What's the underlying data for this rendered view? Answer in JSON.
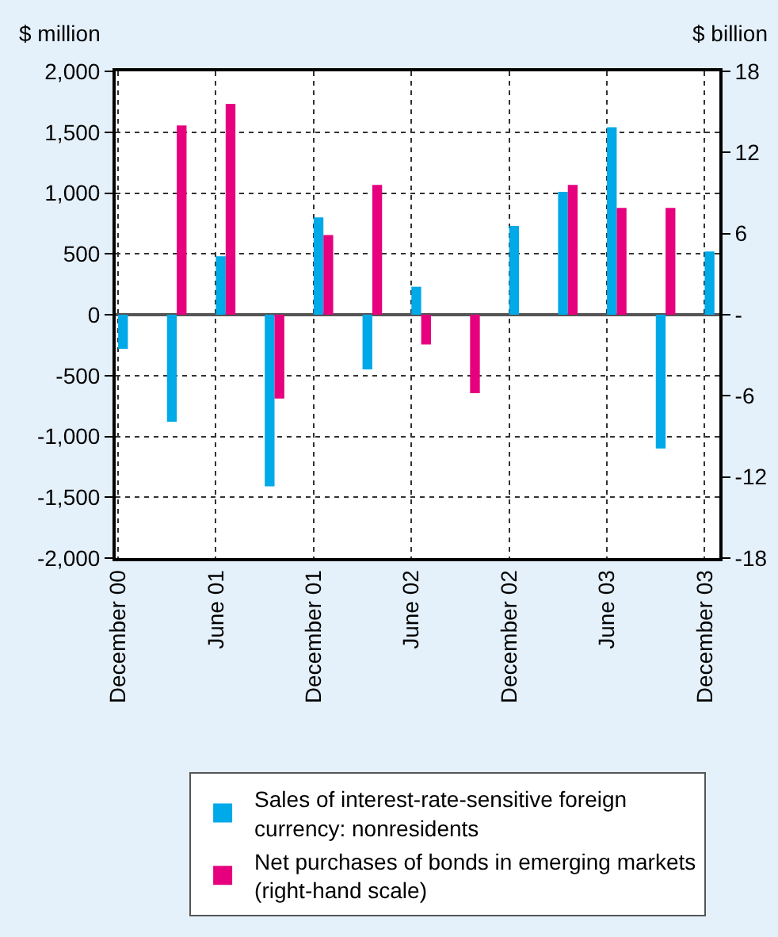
{
  "chart_data": {
    "type": "bar",
    "ylabel": "$ million",
    "y2label": "$ billion",
    "categories": [
      "December 00",
      null,
      "June 01",
      null,
      "December 01",
      null,
      "June 02",
      null,
      "December 02",
      null,
      "June 03",
      null,
      "December 03"
    ],
    "series": [
      {
        "name": "Sales of interest-rate-sensitive foreign currency: nonresidents",
        "color": "#00a9e8",
        "values": [
          -280,
          -880,
          480,
          -1410,
          800,
          -450,
          230,
          null,
          730,
          1010,
          1540,
          -1100,
          520
        ]
      },
      {
        "name": "Net purchases of bonds in emerging markets (right-hand scale)",
        "color": "#e6007e",
        "axis": "y2",
        "values": [
          null,
          14.0,
          15.6,
          -6.2,
          5.9,
          9.6,
          -2.2,
          -5.8,
          null,
          9.6,
          7.9,
          7.9,
          null
        ]
      }
    ],
    "ylim": [
      -2000,
      2000
    ],
    "yticks": [
      {
        "value": -2000,
        "label": "-2,000"
      },
      {
        "value": -1500,
        "label": "-1,500"
      },
      {
        "value": -1000,
        "label": "-1,000"
      },
      {
        "value": -500,
        "label": "-500"
      },
      0,
      {
        "value": 500,
        "label": "500"
      },
      {
        "value": 1000,
        "label": "1,000"
      },
      {
        "value": 1500,
        "label": "1,500"
      },
      {
        "value": 2000,
        "label": "2,000"
      }
    ],
    "y2lim": [
      -18,
      18
    ],
    "y2ticks": [
      -18,
      -12,
      -6,
      {
        "value": 0,
        "label": "-"
      },
      6,
      12,
      18
    ],
    "grid": true,
    "legend": "bottom"
  }
}
